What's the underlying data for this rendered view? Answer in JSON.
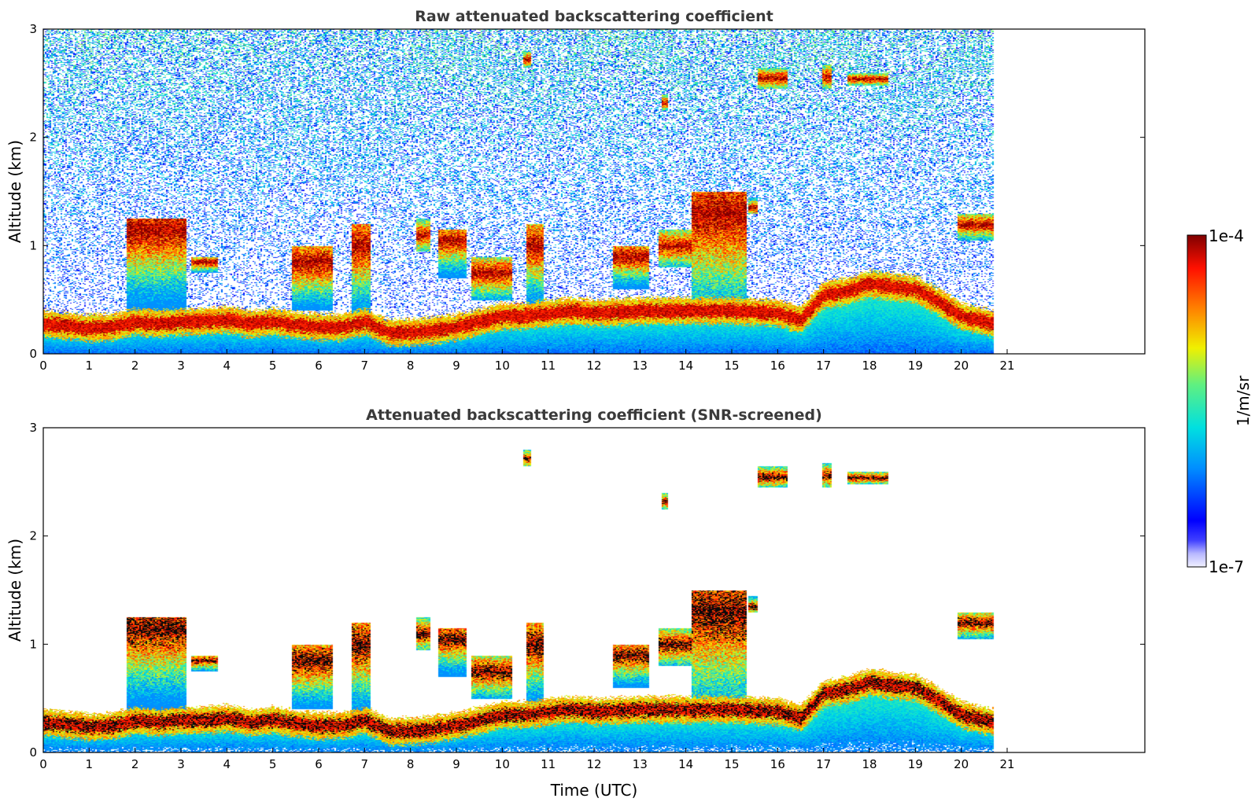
{
  "chart_data": [
    {
      "type": "heatmap",
      "title": "Raw attenuated backscattering coefficient",
      "xlabel": "",
      "ylabel": "Altitude (km)",
      "xlim": [
        0,
        24
      ],
      "ylim": [
        0,
        3
      ],
      "xticks": [
        "0",
        "1",
        "2",
        "3",
        "4",
        "5",
        "6",
        "7",
        "8",
        "9",
        "10",
        "11",
        "12",
        "13",
        "14",
        "15",
        "16",
        "17",
        "18",
        "19",
        "20",
        "21"
      ],
      "yticks": [
        "0",
        "1",
        "2",
        "3"
      ],
      "data_end_hour": 20.7,
      "screened": false
    },
    {
      "type": "heatmap",
      "title": "Attenuated backscattering coefficient (SNR-screened)",
      "xlabel": "Time (UTC)",
      "ylabel": "Altitude (km)",
      "xlim": [
        0,
        24
      ],
      "ylim": [
        0,
        3
      ],
      "xticks": [
        "0",
        "1",
        "2",
        "3",
        "4",
        "5",
        "6",
        "7",
        "8",
        "9",
        "10",
        "11",
        "12",
        "13",
        "14",
        "15",
        "16",
        "17",
        "18",
        "19",
        "20",
        "21"
      ],
      "yticks": [
        "0",
        "1",
        "2",
        "3"
      ],
      "data_end_hour": 20.7,
      "screened": true
    }
  ],
  "colorbar": {
    "label": "1/m/sr",
    "max_label": "1e-4",
    "min_label": "1e-7",
    "scale": "log",
    "colormap": "jet"
  },
  "layers": {
    "boundary_layer_km": [
      [
        0,
        0.28
      ],
      [
        0.5,
        0.26
      ],
      [
        1,
        0.24
      ],
      [
        1.5,
        0.25
      ],
      [
        2,
        0.3
      ],
      [
        2.5,
        0.28
      ],
      [
        3,
        0.3
      ],
      [
        3.5,
        0.3
      ],
      [
        4,
        0.32
      ],
      [
        4.5,
        0.28
      ],
      [
        5,
        0.3
      ],
      [
        5.5,
        0.27
      ],
      [
        6,
        0.25
      ],
      [
        6.5,
        0.25
      ],
      [
        7,
        0.3
      ],
      [
        7.5,
        0.2
      ],
      [
        8,
        0.2
      ],
      [
        8.5,
        0.22
      ],
      [
        9,
        0.25
      ],
      [
        9.5,
        0.3
      ],
      [
        10,
        0.35
      ],
      [
        10.5,
        0.35
      ],
      [
        11,
        0.38
      ],
      [
        11.5,
        0.4
      ],
      [
        12,
        0.38
      ],
      [
        13,
        0.4
      ],
      [
        14,
        0.4
      ],
      [
        15,
        0.4
      ],
      [
        16,
        0.38
      ],
      [
        16.5,
        0.32
      ],
      [
        17,
        0.55
      ],
      [
        17.5,
        0.58
      ],
      [
        18,
        0.65
      ],
      [
        18.5,
        0.62
      ],
      [
        19,
        0.6
      ],
      [
        19.5,
        0.48
      ],
      [
        20,
        0.35
      ],
      [
        20.7,
        0.28
      ]
    ],
    "clouds": [
      {
        "t0": 1.8,
        "t1": 3.1,
        "base": 0.3,
        "top": 1.25,
        "peak": 1.15
      },
      {
        "t0": 3.2,
        "t1": 3.8,
        "base": 0.75,
        "top": 0.9,
        "peak": 0.85
      },
      {
        "t0": 5.4,
        "t1": 6.3,
        "base": 0.4,
        "top": 1.0,
        "peak": 0.85
      },
      {
        "t0": 6.7,
        "t1": 7.1,
        "base": 0.35,
        "top": 1.2,
        "peak": 1.0
      },
      {
        "t0": 8.1,
        "t1": 8.4,
        "base": 0.95,
        "top": 1.25,
        "peak": 1.1
      },
      {
        "t0": 8.6,
        "t1": 9.2,
        "base": 0.7,
        "top": 1.15,
        "peak": 1.05
      },
      {
        "t0": 9.3,
        "t1": 10.2,
        "base": 0.5,
        "top": 0.9,
        "peak": 0.75
      },
      {
        "t0": 10.5,
        "t1": 10.9,
        "base": 0.45,
        "top": 1.2,
        "peak": 1.0
      },
      {
        "t0": 12.4,
        "t1": 13.2,
        "base": 0.6,
        "top": 1.0,
        "peak": 0.9
      },
      {
        "t0": 13.4,
        "t1": 14.1,
        "base": 0.8,
        "top": 1.15,
        "peak": 1.0
      },
      {
        "t0": 14.1,
        "t1": 15.3,
        "base": 0.1,
        "top": 1.5,
        "peak": 1.3
      },
      {
        "t0": 15.35,
        "t1": 15.55,
        "base": 1.3,
        "top": 1.45,
        "peak": 1.35
      },
      {
        "t0": 19.9,
        "t1": 20.7,
        "base": 1.05,
        "top": 1.3,
        "peak": 1.2
      },
      {
        "t0": 10.45,
        "t1": 10.6,
        "base": 2.65,
        "top": 2.8,
        "peak": 2.72
      },
      {
        "t0": 13.45,
        "t1": 13.6,
        "base": 2.25,
        "top": 2.4,
        "peak": 2.32
      },
      {
        "t0": 15.55,
        "t1": 16.2,
        "base": 2.45,
        "top": 2.65,
        "peak": 2.55
      },
      {
        "t0": 16.95,
        "t1": 17.15,
        "base": 2.45,
        "top": 2.68,
        "peak": 2.56
      },
      {
        "t0": 17.5,
        "t1": 18.4,
        "base": 2.48,
        "top": 2.6,
        "peak": 2.54
      }
    ]
  }
}
